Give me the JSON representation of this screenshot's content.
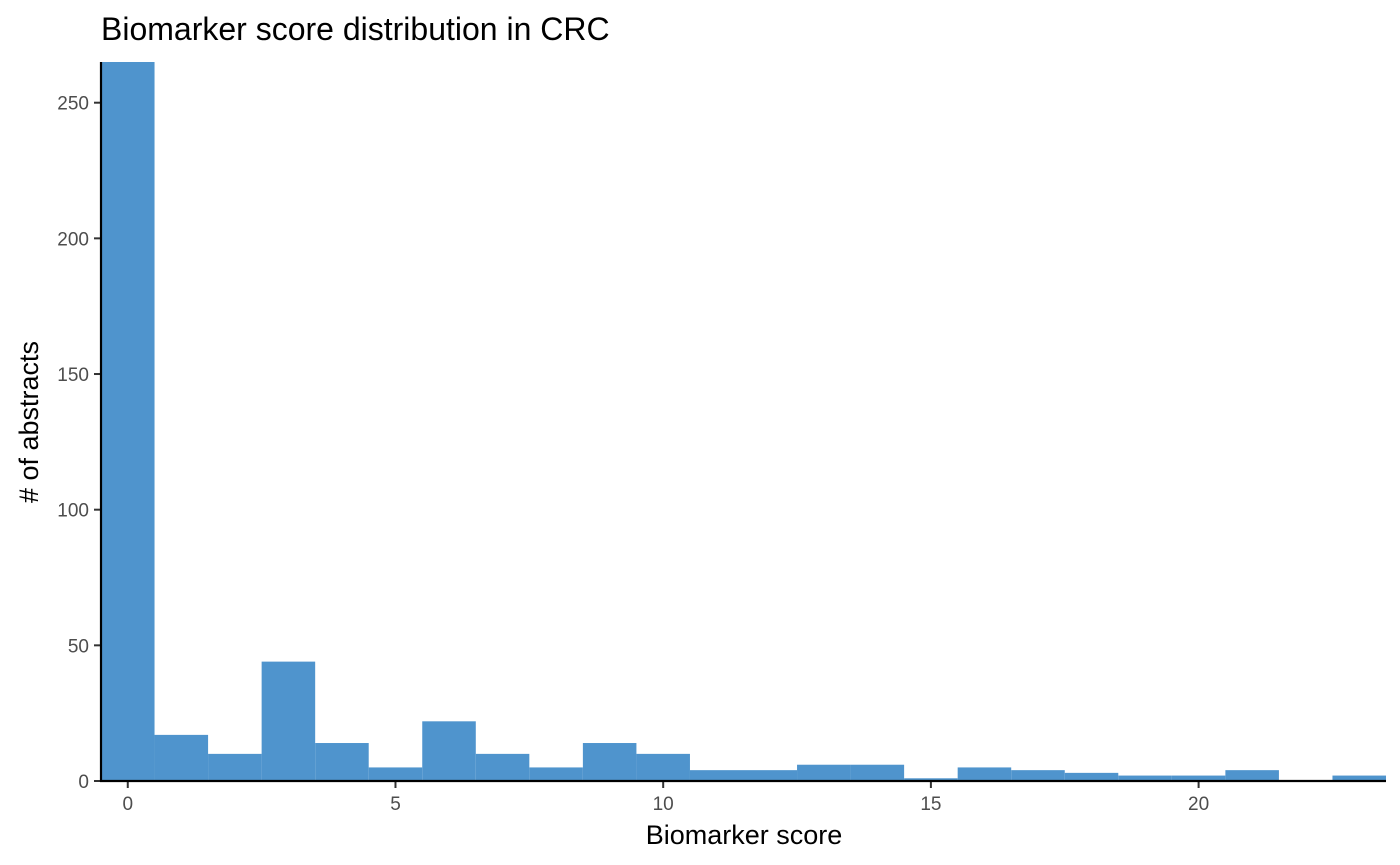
{
  "chart_data": {
    "type": "bar",
    "title": "Biomarker score distribution in CRC",
    "xlabel": "Biomarker score",
    "ylabel": "# of abstracts",
    "bin_width": 1,
    "x": [
      0,
      1,
      2,
      3,
      4,
      5,
      6,
      7,
      8,
      9,
      10,
      11,
      12,
      13,
      14,
      15,
      16,
      17,
      18,
      19,
      20,
      21,
      22,
      23
    ],
    "values": [
      265,
      17,
      10,
      44,
      14,
      5,
      22,
      10,
      5,
      14,
      10,
      4,
      4,
      6,
      6,
      1,
      5,
      4,
      3,
      2,
      2,
      4,
      0,
      2
    ],
    "xlim": [
      -0.5,
      23.5
    ],
    "ylim": [
      0,
      265
    ],
    "xticks": [
      0,
      5,
      10,
      15,
      20
    ],
    "yticks": [
      0,
      50,
      100,
      150,
      200,
      250
    ],
    "xtick_labels": [
      "0",
      "5",
      "10",
      "15",
      "20"
    ],
    "ytick_labels": [
      "0",
      "50",
      "100",
      "150",
      "200",
      "250"
    ],
    "bar_color": "#4F94CD",
    "grid": false,
    "legend": "none"
  }
}
